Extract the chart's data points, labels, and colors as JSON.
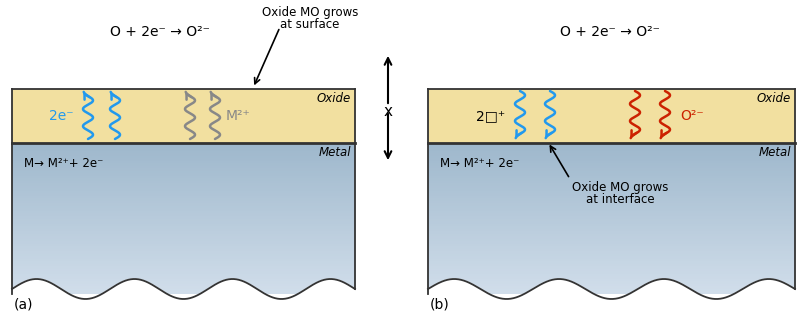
{
  "fig_width": 8.05,
  "fig_height": 3.11,
  "bg_color": "#ffffff",
  "oxide_color": "#f2e0a0",
  "metal_color_light": "#dce8f0",
  "metal_color_dark": "#8899aa",
  "border_color": "#333333",
  "panel_a": {
    "label": "(a)",
    "top_text": "O + 2e⁻ → O²⁻",
    "grows_text1": "Oxide MO grows",
    "grows_text2": "at surface",
    "oxide_label": "Oxide",
    "metal_label": "Metal",
    "metal_reaction": "M→ M²⁺+ 2e⁻",
    "electron_label": "2e⁻",
    "ion_label": "M²⁺",
    "electron_color": "#2299ee",
    "ion_color": "#888888"
  },
  "panel_b": {
    "label": "(b)",
    "top_text": "O + 2e⁻ → O²⁻",
    "grows_text1": "Oxide MO grows",
    "grows_text2": "at interface",
    "oxide_label": "Oxide",
    "metal_label": "Metal",
    "metal_reaction": "M→ M²⁺+ 2e⁻",
    "vacancy_label": "2□⁺",
    "oxygen_label": "O²⁻",
    "vacancy_color": "#2299ee",
    "oxygen_color": "#cc2200"
  },
  "x_arrow_label": "x"
}
